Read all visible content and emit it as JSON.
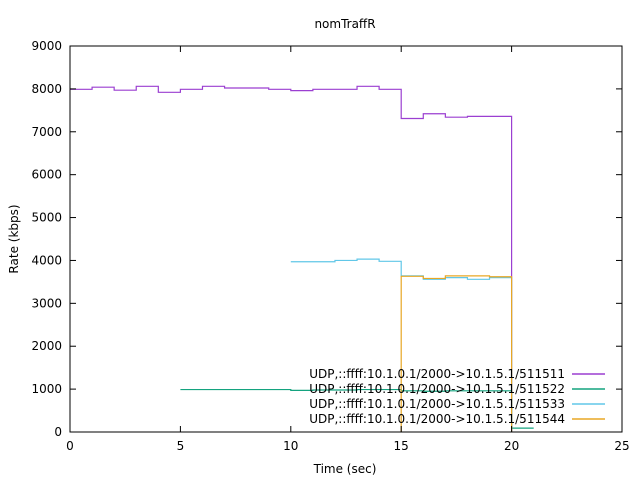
{
  "chart_data": {
    "type": "line",
    "title": "nomTraffR",
    "xlabel": "Time (sec)",
    "ylabel": "Rate (kbps)",
    "xlim": [
      0,
      25
    ],
    "ylim": [
      0,
      9000
    ],
    "xticks": [
      0,
      5,
      10,
      15,
      20,
      25
    ],
    "yticks": [
      0,
      1000,
      2000,
      3000,
      4000,
      5000,
      6000,
      7000,
      8000,
      9000
    ],
    "grid": false,
    "legend_position": "bottom-right",
    "step": true,
    "series": [
      {
        "name": "UDP,::ffff:10.1.0.1/2000->10.1.5.1/511511",
        "color": "#9b3fd1",
        "x": [
          0,
          1,
          2,
          3,
          4,
          5,
          6,
          7,
          8,
          9,
          10,
          11,
          12,
          13,
          14,
          15,
          16,
          17,
          18,
          19,
          20
        ],
        "y": [
          7990,
          8040,
          7970,
          8060,
          7920,
          7990,
          8060,
          8020,
          8020,
          7990,
          7960,
          7990,
          7990,
          8060,
          7990,
          7310,
          7420,
          7340,
          7360,
          7360,
          0
        ]
      },
      {
        "name": "UDP,::ffff:10.1.0.1/2000->10.1.5.1/511522",
        "color": "#14a37f",
        "x": [
          5,
          10,
          11,
          12,
          13,
          14,
          15,
          16,
          17,
          18,
          19,
          20,
          21
        ],
        "y": [
          990,
          970,
          980,
          980,
          990,
          990,
          960,
          950,
          960,
          960,
          960,
          90,
          90
        ]
      },
      {
        "name": "UDP,::ffff:10.1.0.1/2000->10.1.5.1/511533",
        "color": "#61c7e8",
        "x": [
          10,
          11,
          12,
          13,
          14,
          15,
          16,
          17,
          18,
          19,
          20
        ],
        "y": [
          3970,
          3970,
          4000,
          4030,
          3980,
          3640,
          3560,
          3600,
          3560,
          3600,
          0
        ]
      },
      {
        "name": "UDP,::ffff:10.1.0.1/2000->10.1.5.1/511544",
        "color": "#e8a725",
        "x": [
          15,
          16,
          17,
          18,
          19,
          20
        ],
        "y": [
          3630,
          3580,
          3640,
          3640,
          3620,
          0
        ],
        "drop_from": 0
      }
    ]
  }
}
